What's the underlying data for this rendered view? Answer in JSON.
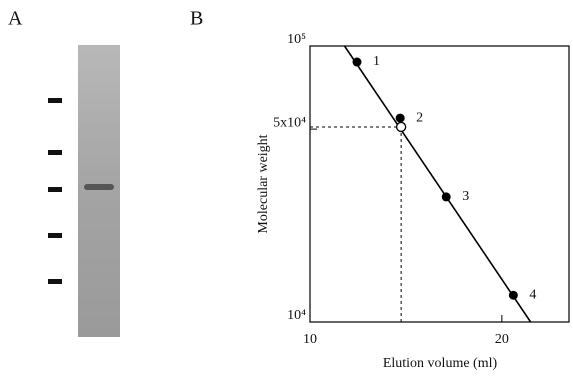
{
  "panel_labels": [
    "A",
    "B"
  ],
  "chart_data": {
    "type": "scatter",
    "xlabel": "Elution volume (ml)",
    "ylabel": "Molecular weight",
    "xlim": [
      10,
      23.5
    ],
    "xticks": [
      10,
      20
    ],
    "ylim": [
      10000,
      100000
    ],
    "log_y": true,
    "yticks": [
      {
        "value": 10000,
        "label": "10⁴"
      },
      {
        "value": 50000,
        "label": "5x10⁴"
      },
      {
        "value": 100000,
        "label": "10⁵"
      }
    ],
    "series": [
      {
        "color": "#000000",
        "x": [
          12.45,
          14.7,
          17.1,
          20.6
        ],
        "values": [
          87500,
          54800,
          28400,
          12500
        ],
        "labels": [
          "1",
          "2",
          "3",
          "4"
        ]
      }
    ],
    "sample": {
      "x": 14.75,
      "value": 50900,
      "color": "#ffffff"
    },
    "fit": {
      "x": [
        11.8,
        21.5
      ],
      "values": [
        100000,
        10000
      ]
    }
  }
}
